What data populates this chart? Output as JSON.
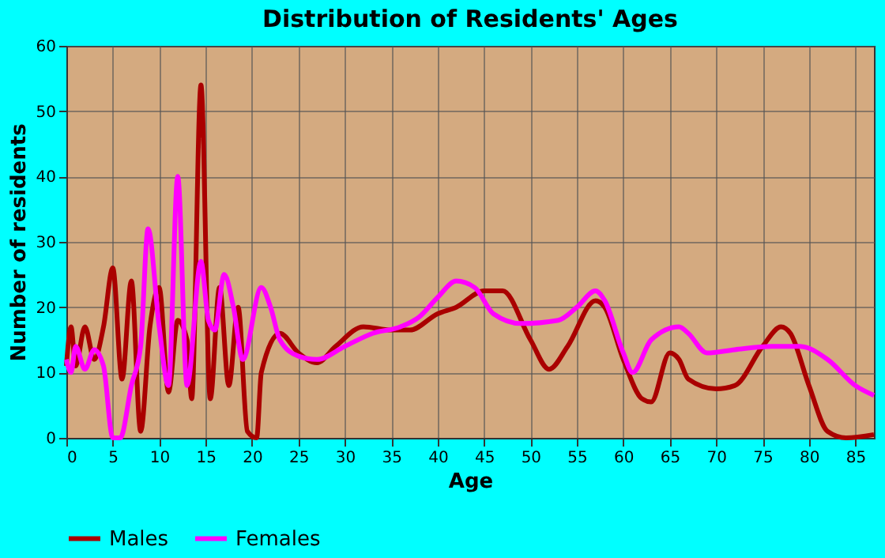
{
  "chart_data": {
    "type": "line",
    "title": "Distribution of Residents' Ages",
    "xlabel": "Age",
    "ylabel": "Number of residents",
    "xlim": [
      0,
      87
    ],
    "xticks": [
      0,
      5,
      10,
      15,
      20,
      25,
      30,
      35,
      40,
      45,
      50,
      55,
      60,
      65,
      70,
      75,
      80,
      85
    ],
    "ylim": [
      0,
      60
    ],
    "yticks": [
      0,
      10,
      20,
      30,
      40,
      50,
      60
    ],
    "grid": true,
    "legend": "bottom",
    "line_style": "solid",
    "series": [
      {
        "name": "Males",
        "color": "#aa0000",
        "x": [
          0,
          0.5,
          1,
          2,
          3,
          4,
          5,
          6,
          7,
          8,
          9,
          10,
          11,
          12,
          13,
          13.5,
          14.5,
          15.5,
          16.5,
          17.5,
          18.5,
          19.5,
          20.5,
          21,
          23,
          25,
          27,
          29,
          32,
          35,
          37,
          40,
          42,
          45,
          47,
          50,
          52,
          54,
          57,
          58,
          60,
          62,
          63,
          65,
          66,
          67,
          70,
          72,
          75,
          77,
          78,
          80,
          82,
          84,
          87
        ],
        "values": [
          11,
          17,
          11,
          17,
          12,
          17,
          26,
          9,
          24,
          1,
          17,
          23,
          7,
          18,
          15,
          6,
          54,
          6,
          23,
          8,
          20,
          1,
          0,
          10,
          16,
          13,
          11.5,
          14,
          17,
          16.5,
          16.5,
          19,
          20,
          22.5,
          22.5,
          15,
          10.5,
          14,
          21,
          20,
          12,
          6,
          5.5,
          13,
          12,
          9,
          7.5,
          8,
          14,
          17,
          16,
          8,
          1,
          0,
          0.5
        ]
      },
      {
        "name": "Females",
        "color": "#ff00ff",
        "x": [
          0,
          0.5,
          1,
          2,
          3,
          4,
          5,
          5.8,
          7,
          8,
          8.8,
          10,
          11,
          12,
          13,
          14.5,
          15.3,
          16,
          17,
          18,
          19,
          21,
          22,
          23,
          25,
          27,
          30,
          33,
          36,
          38,
          40,
          42,
          44,
          46,
          49,
          53,
          55,
          57,
          58,
          60,
          61,
          63,
          66,
          67,
          69,
          72,
          76,
          79,
          82,
          85,
          87
        ],
        "values": [
          12,
          10,
          14,
          10.5,
          13.5,
          11,
          0,
          0,
          8,
          14,
          32,
          17,
          8,
          40,
          8,
          27,
          18,
          16.5,
          25,
          20,
          12,
          23,
          20,
          15,
          12.5,
          12,
          14,
          16,
          17,
          18.5,
          21.5,
          24,
          23,
          19,
          17.5,
          18,
          20,
          22.5,
          21,
          13,
          10,
          15,
          17,
          16,
          13,
          13.5,
          14,
          14,
          12,
          8,
          6.5
        ]
      }
    ]
  }
}
